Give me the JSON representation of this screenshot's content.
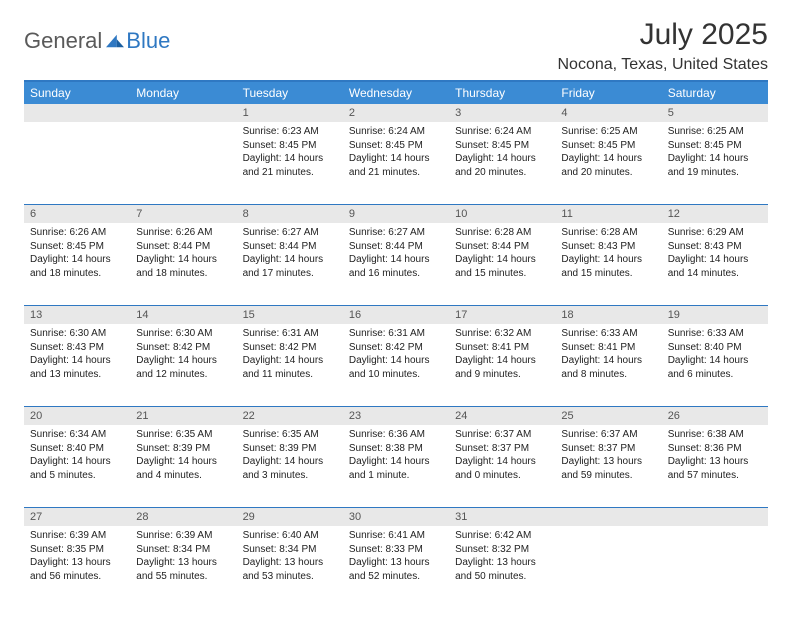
{
  "brand": {
    "general": "General",
    "blue": "Blue"
  },
  "title": "July 2025",
  "location": "Nocona, Texas, United States",
  "colors": {
    "header_bg": "#3b8bd4",
    "accent": "#2f78c2",
    "daynum_bg": "#e8e8e8",
    "text": "#222222",
    "text_muted": "#555555",
    "logo_gray": "#5a5a5a",
    "logo_blue": "#2f78c2",
    "background": "#ffffff"
  },
  "dow": [
    "Sunday",
    "Monday",
    "Tuesday",
    "Wednesday",
    "Thursday",
    "Friday",
    "Saturday"
  ],
  "weeks": [
    [
      {
        "n": "",
        "sunrise": "",
        "sunset": "",
        "daylight": ""
      },
      {
        "n": "",
        "sunrise": "",
        "sunset": "",
        "daylight": ""
      },
      {
        "n": "1",
        "sunrise": "Sunrise: 6:23 AM",
        "sunset": "Sunset: 8:45 PM",
        "daylight": "Daylight: 14 hours and 21 minutes."
      },
      {
        "n": "2",
        "sunrise": "Sunrise: 6:24 AM",
        "sunset": "Sunset: 8:45 PM",
        "daylight": "Daylight: 14 hours and 21 minutes."
      },
      {
        "n": "3",
        "sunrise": "Sunrise: 6:24 AM",
        "sunset": "Sunset: 8:45 PM",
        "daylight": "Daylight: 14 hours and 20 minutes."
      },
      {
        "n": "4",
        "sunrise": "Sunrise: 6:25 AM",
        "sunset": "Sunset: 8:45 PM",
        "daylight": "Daylight: 14 hours and 20 minutes."
      },
      {
        "n": "5",
        "sunrise": "Sunrise: 6:25 AM",
        "sunset": "Sunset: 8:45 PM",
        "daylight": "Daylight: 14 hours and 19 minutes."
      }
    ],
    [
      {
        "n": "6",
        "sunrise": "Sunrise: 6:26 AM",
        "sunset": "Sunset: 8:45 PM",
        "daylight": "Daylight: 14 hours and 18 minutes."
      },
      {
        "n": "7",
        "sunrise": "Sunrise: 6:26 AM",
        "sunset": "Sunset: 8:44 PM",
        "daylight": "Daylight: 14 hours and 18 minutes."
      },
      {
        "n": "8",
        "sunrise": "Sunrise: 6:27 AM",
        "sunset": "Sunset: 8:44 PM",
        "daylight": "Daylight: 14 hours and 17 minutes."
      },
      {
        "n": "9",
        "sunrise": "Sunrise: 6:27 AM",
        "sunset": "Sunset: 8:44 PM",
        "daylight": "Daylight: 14 hours and 16 minutes."
      },
      {
        "n": "10",
        "sunrise": "Sunrise: 6:28 AM",
        "sunset": "Sunset: 8:44 PM",
        "daylight": "Daylight: 14 hours and 15 minutes."
      },
      {
        "n": "11",
        "sunrise": "Sunrise: 6:28 AM",
        "sunset": "Sunset: 8:43 PM",
        "daylight": "Daylight: 14 hours and 15 minutes."
      },
      {
        "n": "12",
        "sunrise": "Sunrise: 6:29 AM",
        "sunset": "Sunset: 8:43 PM",
        "daylight": "Daylight: 14 hours and 14 minutes."
      }
    ],
    [
      {
        "n": "13",
        "sunrise": "Sunrise: 6:30 AM",
        "sunset": "Sunset: 8:43 PM",
        "daylight": "Daylight: 14 hours and 13 minutes."
      },
      {
        "n": "14",
        "sunrise": "Sunrise: 6:30 AM",
        "sunset": "Sunset: 8:42 PM",
        "daylight": "Daylight: 14 hours and 12 minutes."
      },
      {
        "n": "15",
        "sunrise": "Sunrise: 6:31 AM",
        "sunset": "Sunset: 8:42 PM",
        "daylight": "Daylight: 14 hours and 11 minutes."
      },
      {
        "n": "16",
        "sunrise": "Sunrise: 6:31 AM",
        "sunset": "Sunset: 8:42 PM",
        "daylight": "Daylight: 14 hours and 10 minutes."
      },
      {
        "n": "17",
        "sunrise": "Sunrise: 6:32 AM",
        "sunset": "Sunset: 8:41 PM",
        "daylight": "Daylight: 14 hours and 9 minutes."
      },
      {
        "n": "18",
        "sunrise": "Sunrise: 6:33 AM",
        "sunset": "Sunset: 8:41 PM",
        "daylight": "Daylight: 14 hours and 8 minutes."
      },
      {
        "n": "19",
        "sunrise": "Sunrise: 6:33 AM",
        "sunset": "Sunset: 8:40 PM",
        "daylight": "Daylight: 14 hours and 6 minutes."
      }
    ],
    [
      {
        "n": "20",
        "sunrise": "Sunrise: 6:34 AM",
        "sunset": "Sunset: 8:40 PM",
        "daylight": "Daylight: 14 hours and 5 minutes."
      },
      {
        "n": "21",
        "sunrise": "Sunrise: 6:35 AM",
        "sunset": "Sunset: 8:39 PM",
        "daylight": "Daylight: 14 hours and 4 minutes."
      },
      {
        "n": "22",
        "sunrise": "Sunrise: 6:35 AM",
        "sunset": "Sunset: 8:39 PM",
        "daylight": "Daylight: 14 hours and 3 minutes."
      },
      {
        "n": "23",
        "sunrise": "Sunrise: 6:36 AM",
        "sunset": "Sunset: 8:38 PM",
        "daylight": "Daylight: 14 hours and 1 minute."
      },
      {
        "n": "24",
        "sunrise": "Sunrise: 6:37 AM",
        "sunset": "Sunset: 8:37 PM",
        "daylight": "Daylight: 14 hours and 0 minutes."
      },
      {
        "n": "25",
        "sunrise": "Sunrise: 6:37 AM",
        "sunset": "Sunset: 8:37 PM",
        "daylight": "Daylight: 13 hours and 59 minutes."
      },
      {
        "n": "26",
        "sunrise": "Sunrise: 6:38 AM",
        "sunset": "Sunset: 8:36 PM",
        "daylight": "Daylight: 13 hours and 57 minutes."
      }
    ],
    [
      {
        "n": "27",
        "sunrise": "Sunrise: 6:39 AM",
        "sunset": "Sunset: 8:35 PM",
        "daylight": "Daylight: 13 hours and 56 minutes."
      },
      {
        "n": "28",
        "sunrise": "Sunrise: 6:39 AM",
        "sunset": "Sunset: 8:34 PM",
        "daylight": "Daylight: 13 hours and 55 minutes."
      },
      {
        "n": "29",
        "sunrise": "Sunrise: 6:40 AM",
        "sunset": "Sunset: 8:34 PM",
        "daylight": "Daylight: 13 hours and 53 minutes."
      },
      {
        "n": "30",
        "sunrise": "Sunrise: 6:41 AM",
        "sunset": "Sunset: 8:33 PM",
        "daylight": "Daylight: 13 hours and 52 minutes."
      },
      {
        "n": "31",
        "sunrise": "Sunrise: 6:42 AM",
        "sunset": "Sunset: 8:32 PM",
        "daylight": "Daylight: 13 hours and 50 minutes."
      },
      {
        "n": "",
        "sunrise": "",
        "sunset": "",
        "daylight": ""
      },
      {
        "n": "",
        "sunrise": "",
        "sunset": "",
        "daylight": ""
      }
    ]
  ]
}
